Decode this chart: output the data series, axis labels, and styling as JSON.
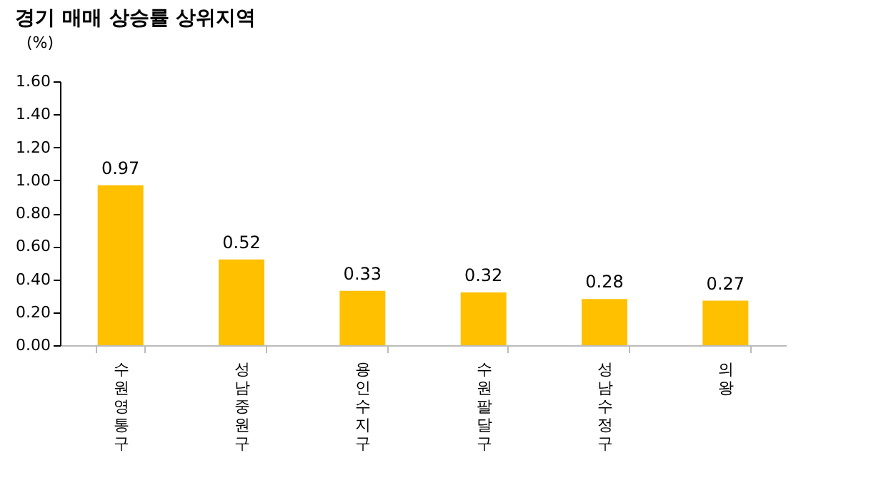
{
  "chart_data": {
    "type": "bar",
    "title": "경기 매매 상승률 상위지역",
    "ylabel": "(%)",
    "categories": [
      "수원 영통구",
      "성남 중원구",
      "용인 수지구",
      "수원 팔달구",
      "성남 수정구",
      "의왕"
    ],
    "values": [
      0.97,
      0.52,
      0.33,
      0.32,
      0.28,
      0.27
    ],
    "color": "#ffc000",
    "ylim": [
      0,
      1.6
    ],
    "yticks": [
      {
        "value": 0,
        "label": "0.00"
      },
      {
        "value": 0.2,
        "label": "0.20"
      },
      {
        "value": 0.4,
        "label": "0.40"
      },
      {
        "value": 0.6,
        "label": "0.60"
      },
      {
        "value": 0.8,
        "label": "0.80"
      },
      {
        "value": 1.0,
        "label": "1.00"
      },
      {
        "value": 1.2,
        "label": "1.20"
      },
      {
        "value": 1.4,
        "label": "1.40"
      },
      {
        "value": 1.6,
        "label": "1.60"
      }
    ],
    "value_labels": [
      "0.97",
      "0.52",
      "0.33",
      "0.32",
      "0.28",
      "0.27"
    ],
    "grid": false
  }
}
